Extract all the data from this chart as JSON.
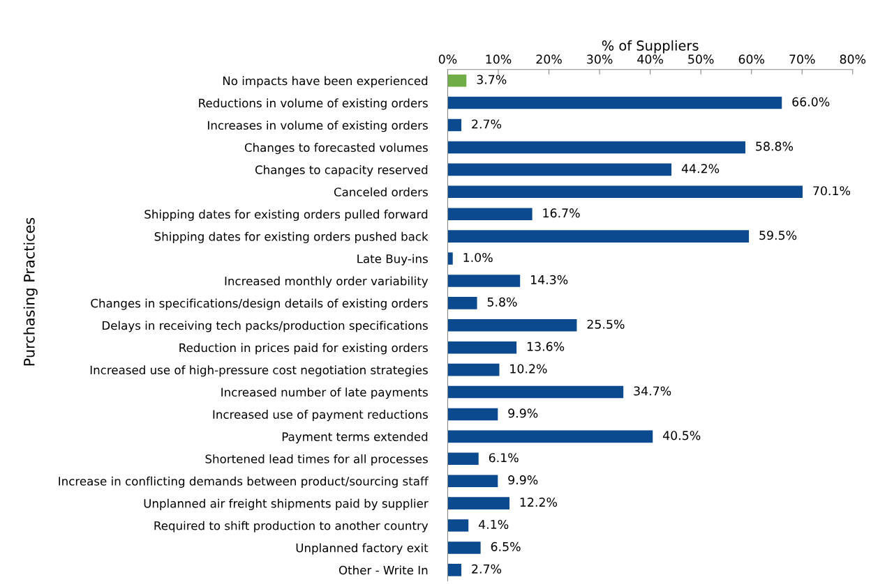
{
  "chart_data": {
    "type": "bar",
    "orientation": "horizontal",
    "xlabel": "% of Suppliers",
    "ylabel": "Purchasing Practices",
    "categories": [
      "No impacts have been experienced",
      "Reductions in volume of existing orders",
      "Increases in volume of existing orders",
      "Changes to forecasted volumes",
      "Changes to capacity reserved",
      "Canceled orders",
      "Shipping dates for existing orders pulled forward",
      "Shipping dates for existing orders pushed back",
      "Late Buy-ins",
      "Increased monthly order variability",
      "Changes in specifications/design details of existing orders",
      "Delays in receiving tech packs/production specifications",
      "Reduction in prices paid for existing orders",
      "Increased use of high-pressure cost negotiation strategies",
      "Increased number of late payments",
      "Increased use of payment reductions",
      "Payment terms extended",
      "Shortened lead times for all processes",
      "Increase in conflicting demands between product/sourcing staff",
      "Unplanned air freight shipments paid by supplier",
      "Required to shift production to another country",
      "Unplanned factory exit",
      "Other - Write In"
    ],
    "values": [
      3.7,
      66.0,
      2.7,
      58.8,
      44.2,
      70.1,
      16.7,
      59.5,
      1.0,
      14.3,
      5.8,
      25.5,
      13.6,
      10.2,
      34.7,
      9.9,
      40.5,
      6.1,
      9.9,
      12.2,
      4.1,
      6.5,
      2.7
    ],
    "value_labels": [
      "3.7%",
      "66.0%",
      "2.7%",
      "58.8%",
      "44.2%",
      "70.1%",
      "16.7%",
      "59.5%",
      "1.0%",
      "14.3%",
      "5.8%",
      "25.5%",
      "13.6%",
      "10.2%",
      "34.7%",
      "9.9%",
      "40.5%",
      "6.1%",
      "9.9%",
      "12.2%",
      "4.1%",
      "6.5%",
      "2.7%"
    ],
    "colors": [
      "#70ad47",
      "#0b4a8f",
      "#0b4a8f",
      "#0b4a8f",
      "#0b4a8f",
      "#0b4a8f",
      "#0b4a8f",
      "#0b4a8f",
      "#0b4a8f",
      "#0b4a8f",
      "#0b4a8f",
      "#0b4a8f",
      "#0b4a8f",
      "#0b4a8f",
      "#0b4a8f",
      "#0b4a8f",
      "#0b4a8f",
      "#0b4a8f",
      "#0b4a8f",
      "#0b4a8f",
      "#0b4a8f",
      "#0b4a8f",
      "#0b4a8f"
    ],
    "xlim": [
      0,
      80
    ],
    "xticks": [
      {
        "value": 0,
        "label": "0%"
      },
      {
        "value": 10,
        "label": "10%"
      },
      {
        "value": 20,
        "label": "20%"
      },
      {
        "value": 30,
        "label": "30%"
      },
      {
        "value": 40,
        "label": "40%"
      },
      {
        "value": 50,
        "label": "50%"
      },
      {
        "value": 60,
        "label": "60%"
      },
      {
        "value": 70,
        "label": "70%"
      },
      {
        "value": 80,
        "label": "80%"
      }
    ],
    "grid": false,
    "legend": false
  }
}
